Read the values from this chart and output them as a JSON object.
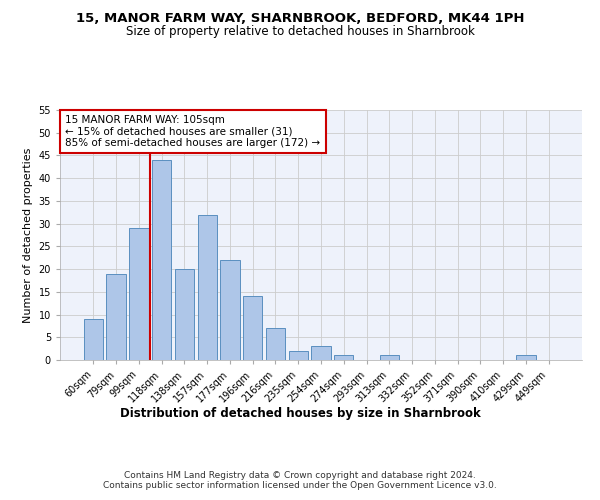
{
  "title": "15, MANOR FARM WAY, SHARNBROOK, BEDFORD, MK44 1PH",
  "subtitle": "Size of property relative to detached houses in Sharnbrook",
  "xlabel": "Distribution of detached houses by size in Sharnbrook",
  "ylabel": "Number of detached properties",
  "categories": [
    "60sqm",
    "79sqm",
    "99sqm",
    "118sqm",
    "138sqm",
    "157sqm",
    "177sqm",
    "196sqm",
    "216sqm",
    "235sqm",
    "254sqm",
    "274sqm",
    "293sqm",
    "313sqm",
    "332sqm",
    "352sqm",
    "371sqm",
    "390sqm",
    "410sqm",
    "429sqm",
    "449sqm"
  ],
  "values": [
    9,
    19,
    29,
    44,
    20,
    32,
    22,
    14,
    7,
    2,
    3,
    1,
    0,
    1,
    0,
    0,
    0,
    0,
    0,
    1,
    0
  ],
  "bar_color": "#aec6e8",
  "bar_edge_color": "#5a8fc0",
  "vline_x": 2.5,
  "vline_color": "#cc0000",
  "annotation_text": "15 MANOR FARM WAY: 105sqm\n← 15% of detached houses are smaller (31)\n85% of semi-detached houses are larger (172) →",
  "annotation_box_color": "white",
  "annotation_box_edge_color": "#cc0000",
  "ylim": [
    0,
    55
  ],
  "yticks": [
    0,
    5,
    10,
    15,
    20,
    25,
    30,
    35,
    40,
    45,
    50,
    55
  ],
  "grid_color": "#cccccc",
  "background_color": "#eef2fb",
  "footer": "Contains HM Land Registry data © Crown copyright and database right 2024.\nContains public sector information licensed under the Open Government Licence v3.0.",
  "title_fontsize": 9.5,
  "subtitle_fontsize": 8.5,
  "xlabel_fontsize": 8.5,
  "ylabel_fontsize": 8,
  "tick_fontsize": 7,
  "annotation_fontsize": 7.5,
  "footer_fontsize": 6.5
}
